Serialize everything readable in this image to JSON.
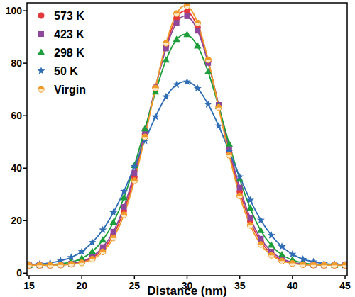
{
  "chart_data": {
    "type": "line",
    "x_label": "Distance (nm)",
    "x": [
      15,
      16,
      17,
      18,
      19,
      20,
      21,
      22,
      23,
      24,
      25,
      26,
      27,
      28,
      29,
      30,
      31,
      32,
      33,
      34,
      35,
      36,
      37,
      38,
      39,
      40,
      41,
      42,
      43,
      44,
      45
    ],
    "xlim": [
      14.8,
      45.2
    ],
    "xticks": [
      15,
      20,
      25,
      30,
      35,
      40,
      45
    ],
    "ylim": [
      -1,
      103
    ],
    "yticks": [
      0,
      20,
      40,
      60,
      80,
      100
    ],
    "legend": "upper left",
    "series": [
      {
        "name": "573 K",
        "color": "#e3393d",
        "marker": "circle",
        "values": [
          3,
          3,
          3,
          3.1,
          3.5,
          4.2,
          5.8,
          9,
          14.6,
          23.7,
          36.6,
          53,
          70.7,
          86.5,
          97.2,
          99.8,
          93.7,
          80.7,
          63.6,
          46.1,
          31,
          19.6,
          12,
          7.4,
          5,
          3.8,
          3.3,
          3.1,
          3,
          3,
          3
        ]
      },
      {
        "name": "423 K",
        "color": "#8e479b",
        "marker": "square",
        "values": [
          3,
          3,
          3,
          3.2,
          3.6,
          4.5,
          6.3,
          9.9,
          15.8,
          25.2,
          38.2,
          54,
          70.7,
          85.6,
          95.4,
          97.9,
          92.4,
          80.1,
          64.1,
          47.3,
          32.6,
          21,
          13.1,
          8.2,
          5.5,
          4.1,
          3.4,
          3.1,
          3,
          3,
          3
        ]
      },
      {
        "name": "298 K",
        "color": "#1c9e3a",
        "marker": "triangle",
        "values": [
          3,
          3.1,
          3.2,
          3.6,
          4.2,
          5.6,
          8.2,
          12.6,
          19.3,
          28.7,
          41,
          55,
          69,
          81.2,
          89,
          90.9,
          86.5,
          76.7,
          63.5,
          49.2,
          35.8,
          24.7,
          16.2,
          10.6,
          7,
          5,
          3.9,
          3.4,
          3.2,
          3,
          3
        ]
      },
      {
        "name": "50 K",
        "color": "#2f6db5",
        "marker": "star",
        "values": [
          3.2,
          3.4,
          3.9,
          4.7,
          6,
          8.2,
          11.7,
          16.5,
          23.1,
          31.2,
          40.6,
          50.4,
          59.6,
          67.2,
          71.8,
          72.9,
          70.4,
          64.3,
          56.1,
          46.4,
          36.7,
          27.8,
          20.2,
          14.4,
          10.1,
          7.2,
          5.3,
          4.3,
          3.6,
          3.3,
          3.1
        ]
      },
      {
        "name": "Virgin",
        "color": "#f09a2a",
        "marker": "half-circle",
        "values": [
          3,
          3,
          3,
          3.1,
          3.4,
          3.9,
          5.3,
          8.1,
          13.4,
          22.2,
          35.2,
          51.9,
          70.5,
          87.6,
          98.9,
          101.8,
          95.3,
          81.3,
          63.1,
          44.9,
          29.4,
          18.2,
          10.9,
          6.8,
          4.6,
          3.7,
          3.2,
          3.1,
          3,
          3,
          3
        ]
      }
    ]
  }
}
